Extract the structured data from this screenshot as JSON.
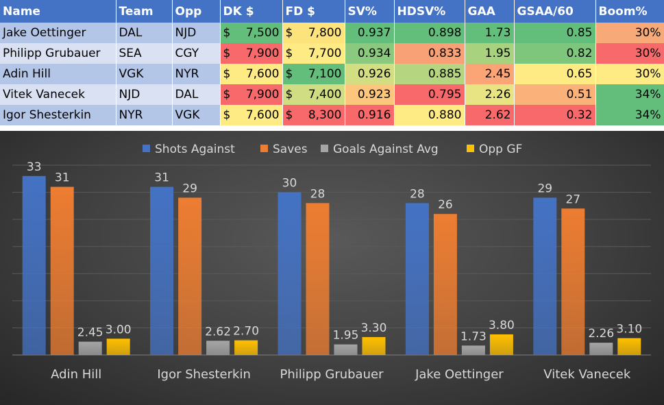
{
  "table": {
    "headers": [
      "Name",
      "Team",
      "Opp",
      "DK $",
      "FD $",
      "SV%",
      "HDSV%",
      "GAA",
      "GSAA/60",
      "Boom%"
    ],
    "rows": [
      {
        "name": "Jake Oettinger",
        "team": "DAL",
        "opp": "NJD",
        "dk": "7,500",
        "fd": "7,800",
        "sv": "0.937",
        "hdsv": "0.898",
        "gaa": "1.73",
        "gsaa": "0.85",
        "boom": "30%"
      },
      {
        "name": "Philipp Grubauer",
        "team": "SEA",
        "opp": "CGY",
        "dk": "7,900",
        "fd": "7,700",
        "sv": "0.934",
        "hdsv": "0.833",
        "gaa": "1.95",
        "gsaa": "0.82",
        "boom": "30%"
      },
      {
        "name": "Adin Hill",
        "team": "VGK",
        "opp": "NYR",
        "dk": "7,600",
        "fd": "7,100",
        "sv": "0.926",
        "hdsv": "0.885",
        "gaa": "2.45",
        "gsaa": "0.65",
        "boom": "30%"
      },
      {
        "name": "Vitek Vanecek",
        "team": "NJD",
        "opp": "DAL",
        "dk": "7,900",
        "fd": "7,400",
        "sv": "0.923",
        "hdsv": "0.795",
        "gaa": "2.26",
        "gsaa": "0.51",
        "boom": "34%"
      },
      {
        "name": "Igor Shesterkin",
        "team": "NYR",
        "opp": "VGK",
        "dk": "7,600",
        "fd": "8,300",
        "sv": "0.916",
        "hdsv": "0.880",
        "gaa": "2.62",
        "gsaa": "0.32",
        "boom": "34%"
      }
    ],
    "currency_symbol": "$",
    "cell_colors": [
      {
        "dk": "#63be7b",
        "fd": "#fde37c",
        "sv": "#63be7b",
        "hdsv": "#63be7b",
        "gaa": "#63be7b",
        "gsaa": "#63be7b",
        "boom": "#f8a978"
      },
      {
        "dk": "#f8696b",
        "fd": "#ffeb84",
        "sv": "#8bca7e",
        "hdsv": "#f9a176",
        "gaa": "#a9d27f",
        "gsaa": "#7fc67d",
        "boom": "#f8696b"
      },
      {
        "dk": "#ffeb84",
        "fd": "#63be7b",
        "sv": "#d2de81",
        "hdsv": "#b6d580",
        "gaa": "#fba476",
        "gsaa": "#ffeb84",
        "boom": "#ffeb84"
      },
      {
        "dk": "#f8696b",
        "fd": "#d0dd82",
        "sv": "#fdc67d",
        "hdsv": "#f8696b",
        "gaa": "#e8e483",
        "gsaa": "#fbb27a",
        "boom": "#63be7b"
      },
      {
        "dk": "#ffeb84",
        "fd": "#f8696b",
        "sv": "#f8696b",
        "hdsv": "#ffeb84",
        "gaa": "#f8696b",
        "gsaa": "#f8696b",
        "boom": "#63be7b"
      }
    ]
  },
  "chart_data": {
    "type": "bar",
    "categories": [
      "Adin Hill",
      "Igor Shesterkin",
      "Philipp Grubauer",
      "Jake Oettinger",
      "Vitek Vanecek"
    ],
    "series": [
      {
        "name": "Shots Against",
        "values": [
          33,
          31,
          30,
          28,
          29
        ],
        "labels": [
          "33",
          "31",
          "30",
          "28",
          "29"
        ],
        "color": "#4472c4"
      },
      {
        "name": "Saves",
        "values": [
          31,
          29,
          28,
          26,
          27
        ],
        "labels": [
          "31",
          "29",
          "28",
          "26",
          "27"
        ],
        "color": "#ed7d31"
      },
      {
        "name": "Goals Against Avg",
        "values": [
          2.45,
          2.62,
          1.95,
          1.73,
          2.26
        ],
        "labels": [
          "2.45",
          "2.62",
          "1.95",
          "1.73",
          "2.26"
        ],
        "color": "#a5a5a5"
      },
      {
        "name": "Opp GF",
        "values": [
          3.0,
          2.7,
          3.3,
          3.8,
          3.1
        ],
        "labels": [
          "3.00",
          "2.70",
          "3.30",
          "3.80",
          "3.10"
        ],
        "color": "#ffc000"
      }
    ],
    "title": "",
    "xlabel": "",
    "ylabel": "",
    "ylim": [
      0,
      35
    ],
    "legend": "top",
    "grid": true
  }
}
